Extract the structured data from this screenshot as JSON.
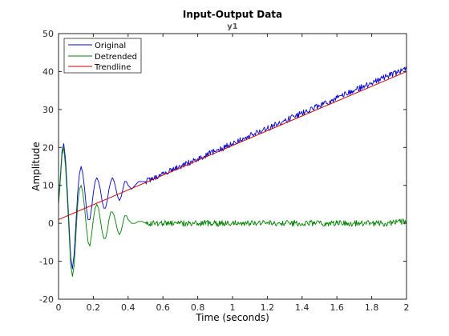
{
  "chart_data": {
    "type": "line",
    "title": "Input-Output Data",
    "subtitle": "y1",
    "xlabel": "Time (seconds)",
    "ylabel": "Amplitude",
    "xlim": [
      0,
      2
    ],
    "ylim": [
      -20,
      50
    ],
    "xticks": [
      "0",
      "0.2",
      "0.4",
      "0.6",
      "0.8",
      "1",
      "1.2",
      "1.4",
      "1.6",
      "1.8",
      "2"
    ],
    "yticks": [
      "-20",
      "-10",
      "0",
      "10",
      "20",
      "30",
      "40",
      "50"
    ],
    "grid": false,
    "legend_position": "top-left",
    "series": [
      {
        "name": "Original",
        "color": "#0000cc",
        "x": [
          0,
          0.01,
          0.02,
          0.03,
          0.04,
          0.05,
          0.06,
          0.07,
          0.08,
          0.09,
          0.1,
          0.11,
          0.12,
          0.13,
          0.14,
          0.15,
          0.16,
          0.17,
          0.18,
          0.19,
          0.2,
          0.21,
          0.22,
          0.23,
          0.24,
          0.25,
          0.26,
          0.27,
          0.28,
          0.29,
          0.3,
          0.31,
          0.32,
          0.33,
          0.34,
          0.35,
          0.36,
          0.37,
          0.38,
          0.39,
          0.4,
          0.42,
          0.44,
          0.46,
          0.48,
          0.5,
          0.55,
          0.6,
          0.7,
          0.8,
          0.9,
          1.0,
          1.1,
          1.2,
          1.3,
          1.4,
          1.5,
          1.6,
          1.7,
          1.8,
          1.9,
          2.0
        ],
        "values": [
          5,
          12,
          19,
          21,
          17,
          9,
          0,
          -9,
          -12,
          -8,
          0,
          8,
          13,
          15,
          13,
          9,
          4,
          1,
          1,
          4,
          8,
          11,
          12,
          11,
          9,
          6,
          4,
          4,
          6,
          9,
          11,
          12,
          11,
          9,
          7,
          6,
          7,
          9,
          11,
          11,
          10,
          9,
          10,
          11,
          11,
          11,
          12,
          13,
          15,
          17,
          19,
          21,
          23,
          25,
          27,
          29,
          31,
          33,
          35,
          37,
          39,
          40.5
        ]
      },
      {
        "name": "Detrended",
        "color": "#008000",
        "x": [
          0,
          0.01,
          0.02,
          0.03,
          0.04,
          0.05,
          0.06,
          0.07,
          0.08,
          0.09,
          0.1,
          0.11,
          0.12,
          0.13,
          0.14,
          0.15,
          0.16,
          0.17,
          0.18,
          0.19,
          0.2,
          0.21,
          0.22,
          0.23,
          0.24,
          0.25,
          0.26,
          0.27,
          0.28,
          0.29,
          0.3,
          0.31,
          0.32,
          0.33,
          0.34,
          0.35,
          0.36,
          0.37,
          0.38,
          0.39,
          0.4,
          0.42,
          0.44,
          0.46,
          0.48,
          0.5,
          0.55,
          0.6,
          0.7,
          0.8,
          0.9,
          1.0,
          1.1,
          1.2,
          1.3,
          1.4,
          1.5,
          1.6,
          1.7,
          1.8,
          1.9,
          2.0
        ],
        "values": [
          5,
          11,
          18,
          20,
          15,
          7,
          -2,
          -11,
          -14,
          -11,
          -3,
          5,
          9,
          10,
          8,
          4,
          -1,
          -5,
          -6,
          -3,
          1,
          4,
          5,
          4,
          1,
          -2,
          -4,
          -4,
          -2,
          1,
          3,
          3,
          2,
          0,
          -2,
          -3,
          -2,
          0,
          2,
          2,
          1,
          0,
          0,
          0.5,
          0.5,
          0,
          0,
          0,
          0,
          0,
          0,
          0,
          0,
          0,
          0,
          0,
          0,
          0,
          0,
          0,
          0,
          0.5
        ]
      },
      {
        "name": "Trendline",
        "color": "#cc0000",
        "x": [
          0,
          2
        ],
        "values": [
          1,
          40
        ]
      }
    ]
  }
}
